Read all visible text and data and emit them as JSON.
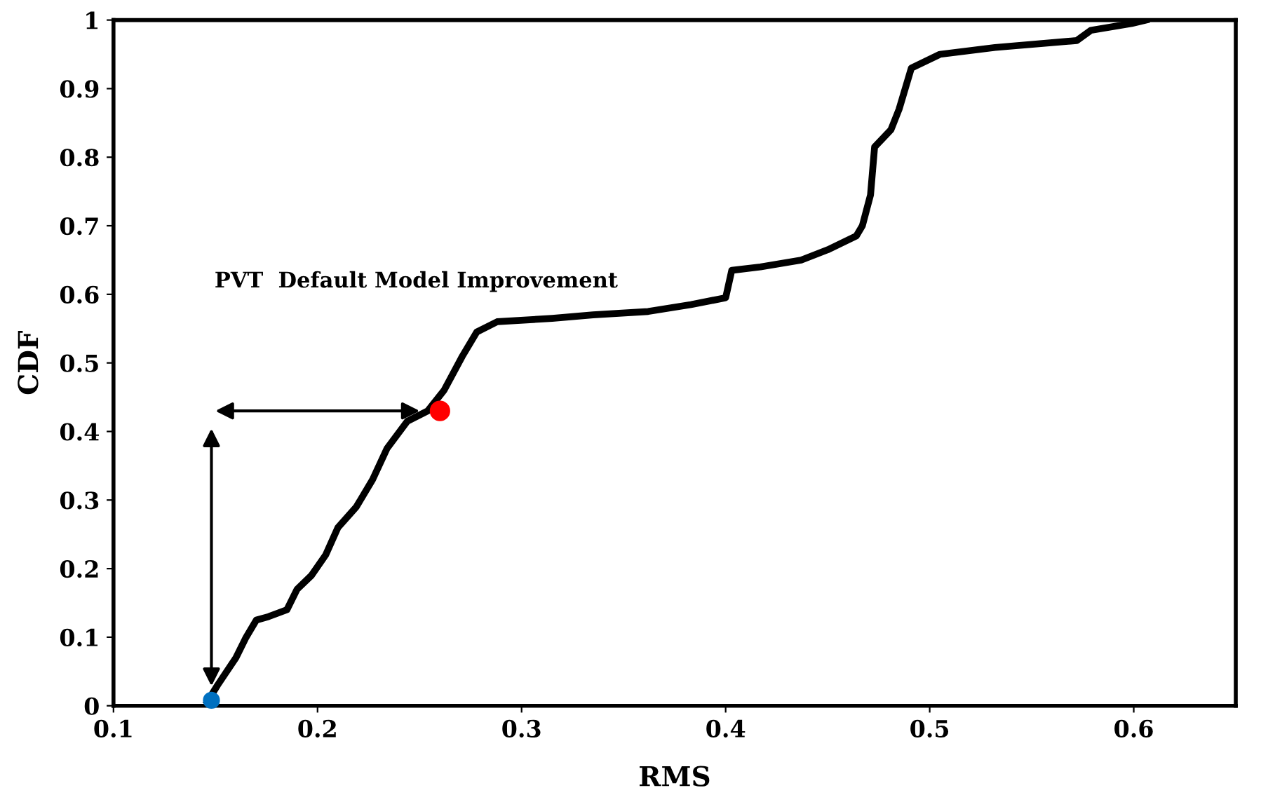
{
  "chart_data": {
    "type": "line",
    "xlabel": "RMS",
    "ylabel": "CDF",
    "xlim": [
      0.1,
      0.65
    ],
    "ylim": [
      0,
      1
    ],
    "xticks": [
      0.1,
      0.2,
      0.3,
      0.4,
      0.5,
      0.6
    ],
    "yticks": [
      0,
      0.1,
      0.2,
      0.3,
      0.4,
      0.5,
      0.6,
      0.7,
      0.8,
      0.9,
      1
    ],
    "grid": false,
    "line_style": "solid",
    "annotations": [
      "PVT  Default Model Improvement"
    ],
    "series": [
      {
        "marker": "none",
        "color": "#000000",
        "x": [
          0.146,
          0.151,
          0.16,
          0.165,
          0.17,
          0.176,
          0.185,
          0.19,
          0.197,
          0.204,
          0.21,
          0.219,
          0.227,
          0.234,
          0.244,
          0.254,
          0.262,
          0.271,
          0.278,
          0.288,
          0.315,
          0.335,
          0.362,
          0.383,
          0.4,
          0.403,
          0.417,
          0.437,
          0.45,
          0.464,
          0.467,
          0.471,
          0.473,
          0.481,
          0.485,
          0.491,
          0.505,
          0.532,
          0.572,
          0.579,
          0.599,
          0.606
        ],
        "values": [
          0.006,
          0.03,
          0.07,
          0.1,
          0.125,
          0.13,
          0.14,
          0.17,
          0.19,
          0.22,
          0.26,
          0.29,
          0.33,
          0.375,
          0.415,
          0.43,
          0.46,
          0.51,
          0.545,
          0.56,
          0.565,
          0.57,
          0.575,
          0.585,
          0.595,
          0.635,
          0.64,
          0.65,
          0.665,
          0.685,
          0.7,
          0.745,
          0.815,
          0.84,
          0.87,
          0.93,
          0.95,
          0.96,
          0.97,
          0.985,
          0.995,
          1.0
        ]
      },
      {
        "type": "scatter",
        "marker": "circle",
        "color": "#0070c0",
        "x": [
          0.148
        ],
        "values": [
          0.008
        ]
      },
      {
        "type": "scatter",
        "marker": "circle",
        "color": "#ff0000",
        "x": [
          0.26
        ],
        "values": [
          0.43
        ]
      }
    ]
  }
}
